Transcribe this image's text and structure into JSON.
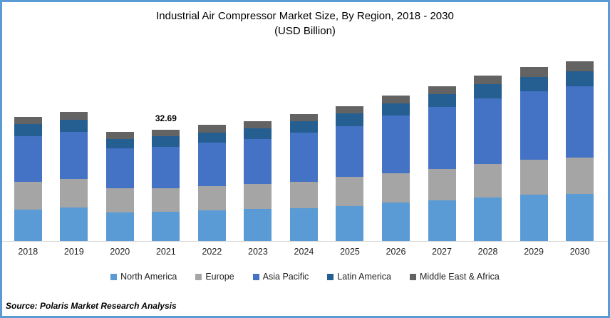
{
  "frame": {
    "border_color": "#5B9BD5",
    "axis_line_color": "#D6D6D6"
  },
  "title": {
    "line1": "Industrial Air Compressor Market Size, By Region, 2018 - 2030",
    "line2": "(USD Billion)"
  },
  "source_note": "Source: Polaris Market Research Analysis",
  "chart_data": {
    "type": "bar",
    "stacked": true,
    "unit": "USD Billion",
    "title": "Industrial Air Compressor Market Size, By Region, 2018 - 2030 (USD Billion)",
    "xlabel": "",
    "ylabel": "",
    "ylim": [
      0,
      56
    ],
    "grid": false,
    "y_axis_hidden": true,
    "legend_position": "bottom",
    "categories": [
      "2018",
      "2019",
      "2020",
      "2021",
      "2022",
      "2023",
      "2024",
      "2025",
      "2026",
      "2027",
      "2028",
      "2029",
      "2030"
    ],
    "series": [
      {
        "name": "North America",
        "color": "#5B9BD5",
        "values": [
          9.3,
          9.8,
          8.4,
          8.6,
          9.0,
          9.4,
          9.7,
          10.3,
          11.3,
          11.9,
          12.8,
          13.7,
          13.9
        ]
      },
      {
        "name": "Europe",
        "color": "#A5A5A5",
        "values": [
          8.0,
          8.4,
          7.0,
          6.9,
          7.1,
          7.3,
          7.7,
          8.6,
          8.5,
          9.3,
          9.8,
          10.1,
          10.5
        ]
      },
      {
        "name": "Asia Pacific",
        "color": "#4472C4",
        "values": [
          13.5,
          13.8,
          11.7,
          12.2,
          12.8,
          13.2,
          14.3,
          14.9,
          17.1,
          18.1,
          19.3,
          20.2,
          21.1
        ]
      },
      {
        "name": "Latin America",
        "color": "#255E91",
        "values": [
          3.6,
          3.5,
          2.9,
          3.1,
          3.0,
          3.1,
          3.5,
          3.6,
          3.6,
          3.7,
          4.1,
          4.2,
          4.3
        ]
      },
      {
        "name": "Middle East & Africa",
        "color": "#636363",
        "values": [
          2.1,
          2.4,
          1.9,
          1.9,
          2.2,
          2.1,
          2.1,
          2.2,
          2.3,
          2.4,
          2.6,
          2.8,
          2.9
        ]
      }
    ],
    "totals": [
      36.5,
      37.9,
      31.9,
      32.7,
      34.1,
      35.1,
      37.3,
      39.6,
      42.8,
      45.4,
      48.6,
      51.0,
      52.7
    ],
    "annotations": [
      {
        "category": "2021",
        "text": "32.69"
      }
    ]
  }
}
